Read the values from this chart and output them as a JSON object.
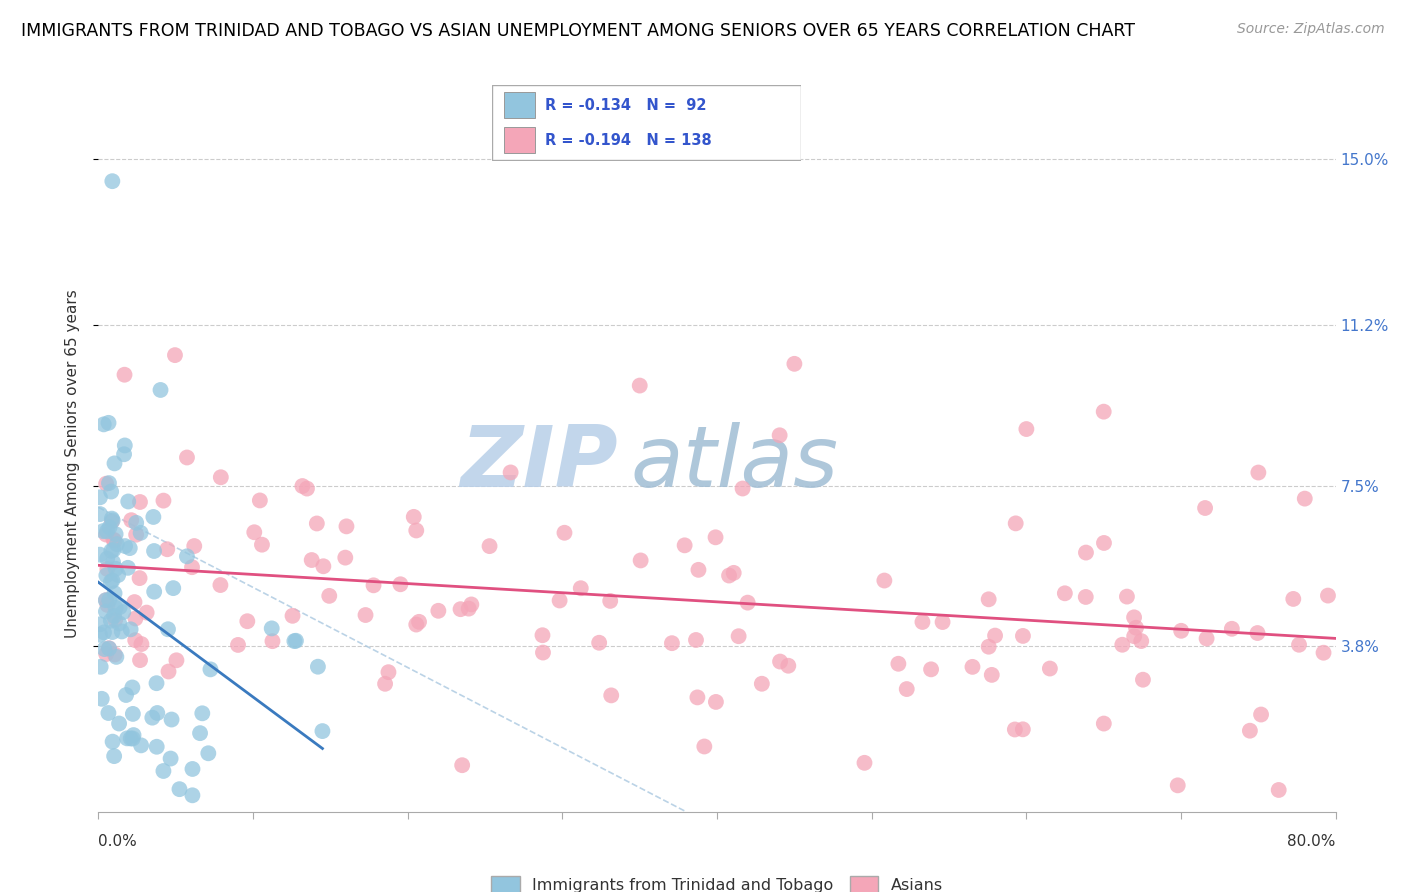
{
  "title": "IMMIGRANTS FROM TRINIDAD AND TOBAGO VS ASIAN UNEMPLOYMENT AMONG SENIORS OVER 65 YEARS CORRELATION CHART",
  "source": "Source: ZipAtlas.com",
  "ylabel": "Unemployment Among Seniors over 65 years",
  "xlim": [
    0.0,
    80.0
  ],
  "ylim": [
    0.0,
    16.0
  ],
  "yticks_right": [
    3.8,
    7.5,
    11.2,
    15.0
  ],
  "ytick_labels_right": [
    "3.8%",
    "7.5%",
    "11.2%",
    "15.0%"
  ],
  "color_blue": "#92c5de",
  "color_pink": "#f4a6b8",
  "color_trendline_blue": "#3a7abf",
  "color_trendline_pink": "#e05080",
  "color_dashed": "#aac8e0",
  "watermark_zip": "ZIP",
  "watermark_atlas": "atlas",
  "watermark_color_zip": "#c5d8ec",
  "watermark_color_atlas": "#b0cce0",
  "title_fontsize": 12.5,
  "source_fontsize": 10,
  "axis_label_fontsize": 11,
  "tick_fontsize": 11,
  "background_color": "#ffffff",
  "legend_text_color": "#3355cc",
  "legend_r1": "R = -0.134",
  "legend_n1": "N =  92",
  "legend_r2": "R = -0.194",
  "legend_n2": "N = 138"
}
